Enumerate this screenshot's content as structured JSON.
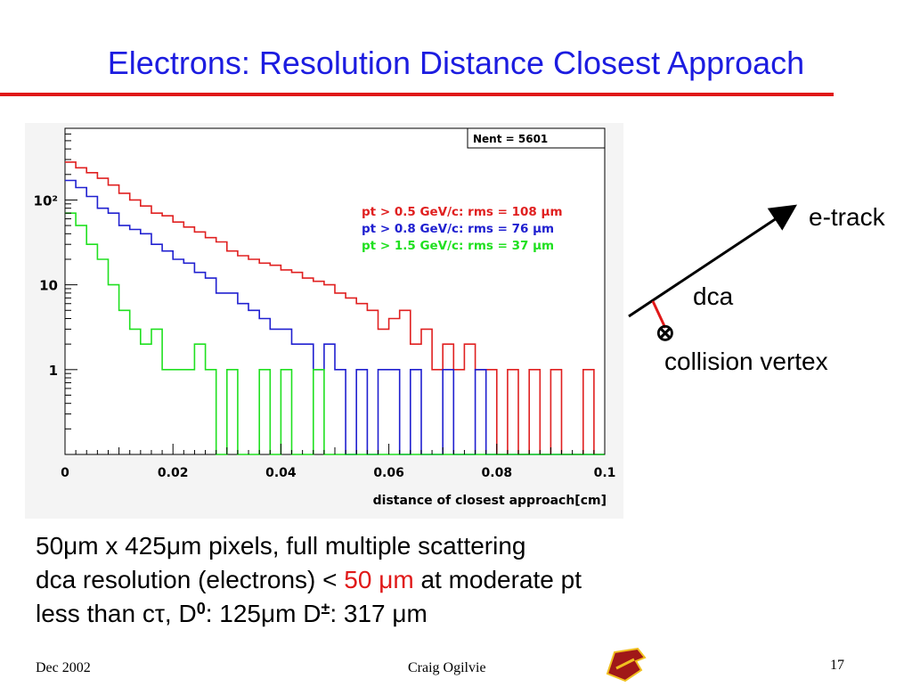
{
  "slide": {
    "title": "Electrons: Resolution Distance Closest Approach",
    "colors": {
      "title": "#1c1ce0",
      "rule": "#e01818"
    }
  },
  "chart_data": {
    "type": "line",
    "xlabel": "distance of closest approach[cm]",
    "ylabel": "",
    "xlim": [
      0,
      0.1
    ],
    "ylim": [
      0.1,
      700
    ],
    "log_y": true,
    "x_ticks": [
      "0",
      "0.02",
      "0.04",
      "0.06",
      "0.08",
      "0.1"
    ],
    "y_ticks": [
      "1",
      "10",
      "10²"
    ],
    "stats_box": "Nent = 5601",
    "bin_width": 0.002,
    "bin_centers": [
      0.001,
      0.003,
      0.005,
      0.007,
      0.009,
      0.011,
      0.013,
      0.015,
      0.017,
      0.019,
      0.021,
      0.023,
      0.025,
      0.027,
      0.029,
      0.031,
      0.033,
      0.035,
      0.037,
      0.039,
      0.041,
      0.043,
      0.045,
      0.047,
      0.049,
      0.051,
      0.053,
      0.055,
      0.057,
      0.059,
      0.061,
      0.063,
      0.065,
      0.067,
      0.069,
      0.071,
      0.073,
      0.075,
      0.077,
      0.079,
      0.081,
      0.083,
      0.085,
      0.087,
      0.089,
      0.091,
      0.093,
      0.095,
      0.097,
      0.099
    ],
    "series": [
      {
        "name": "pt > 0.5 GeV/c:  rms = 108 μm",
        "color": "#e02020",
        "values": [
          280,
          240,
          210,
          180,
          150,
          120,
          100,
          85,
          70,
          65,
          55,
          48,
          42,
          36,
          32,
          25,
          22,
          20,
          18,
          17,
          15,
          14,
          12,
          11,
          10,
          8,
          7,
          6,
          5,
          3,
          4,
          5,
          2,
          3,
          1,
          2,
          1,
          2,
          1,
          1,
          0,
          1,
          0,
          1,
          0,
          1,
          0,
          0,
          1,
          0
        ]
      },
      {
        "name": "pt > 0.8 GeV/c:  rms =   76 μm",
        "color": "#2020d0",
        "values": [
          170,
          140,
          110,
          80,
          70,
          50,
          45,
          40,
          30,
          25,
          20,
          18,
          14,
          12,
          8,
          8,
          6,
          5,
          4,
          3,
          3,
          2,
          2,
          1,
          2,
          1,
          0,
          1,
          0,
          1,
          1,
          0,
          1,
          0,
          0,
          1,
          0,
          0,
          1,
          0,
          0,
          0,
          0,
          0,
          0,
          0,
          0,
          0,
          0,
          0
        ]
      },
      {
        "name": "pt > 1.5 GeV/c:  rms =   37 μm",
        "color": "#20e020",
        "values": [
          70,
          50,
          30,
          20,
          10,
          5,
          3,
          2,
          3,
          1,
          1,
          1,
          2,
          1,
          0,
          1,
          0,
          0,
          1,
          0,
          1,
          0,
          0,
          1,
          0,
          0,
          0,
          0,
          0,
          0,
          0,
          0,
          0,
          0,
          0,
          0,
          0,
          0,
          0,
          0,
          0,
          0,
          0,
          0,
          0,
          0,
          0,
          0,
          0,
          0
        ]
      }
    ]
  },
  "diagram": {
    "track_label": "e-track",
    "dca_label": "dca",
    "vertex_label": "collision vertex",
    "vertex_symbol": "⊗"
  },
  "text": {
    "line1": "50μm x 425μm pixels, full multiple scattering",
    "line2_a": "dca resolution (electrons) < ",
    "line2_red": "50 μm",
    "line2_b": " at moderate pt",
    "line3_a": "less than cτ, D",
    "line3_sup1": "0",
    "line3_b": ": 125μm   D",
    "line3_sup2": "±",
    "line3_c": ": 317 μm"
  },
  "footer": {
    "date": "Dec 2002",
    "author": "Craig Ogilvie",
    "page": "17"
  }
}
